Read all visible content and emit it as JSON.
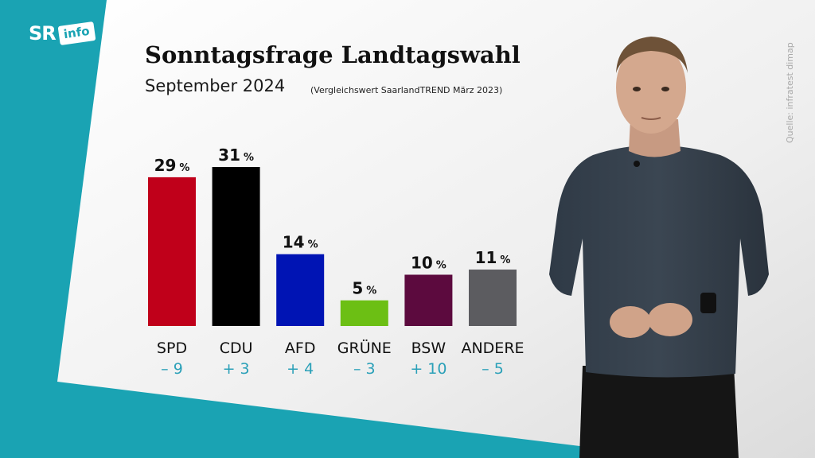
{
  "logo": {
    "sr": "SR",
    "info": "info"
  },
  "header": {
    "title": "Sonntagsfrage Landtagswahl",
    "subtitle": "September 2024",
    "comparison_note": "(Vergleichswert SaarlandTREND März 2023)"
  },
  "source": "Quelle: infratest dimap",
  "colors": {
    "background": "#1aa3b3",
    "panel": "#f2f2f2",
    "change_text": "#2aa0b8"
  },
  "chart_data": {
    "type": "bar",
    "categories": [
      "SPD",
      "CDU",
      "AFD",
      "GRÜNE",
      "BSW",
      "ANDERE"
    ],
    "values": [
      29,
      31,
      14,
      5,
      10,
      11
    ],
    "value_unit": "%",
    "changes": [
      "– 9",
      "+ 3",
      "+ 4",
      "– 3",
      "+ 10",
      "– 5"
    ],
    "colors": [
      "#c0001a",
      "#000000",
      "#0014b4",
      "#6cbf14",
      "#5c0a3e",
      "#5c5c60"
    ],
    "ylim": [
      0,
      31
    ]
  }
}
